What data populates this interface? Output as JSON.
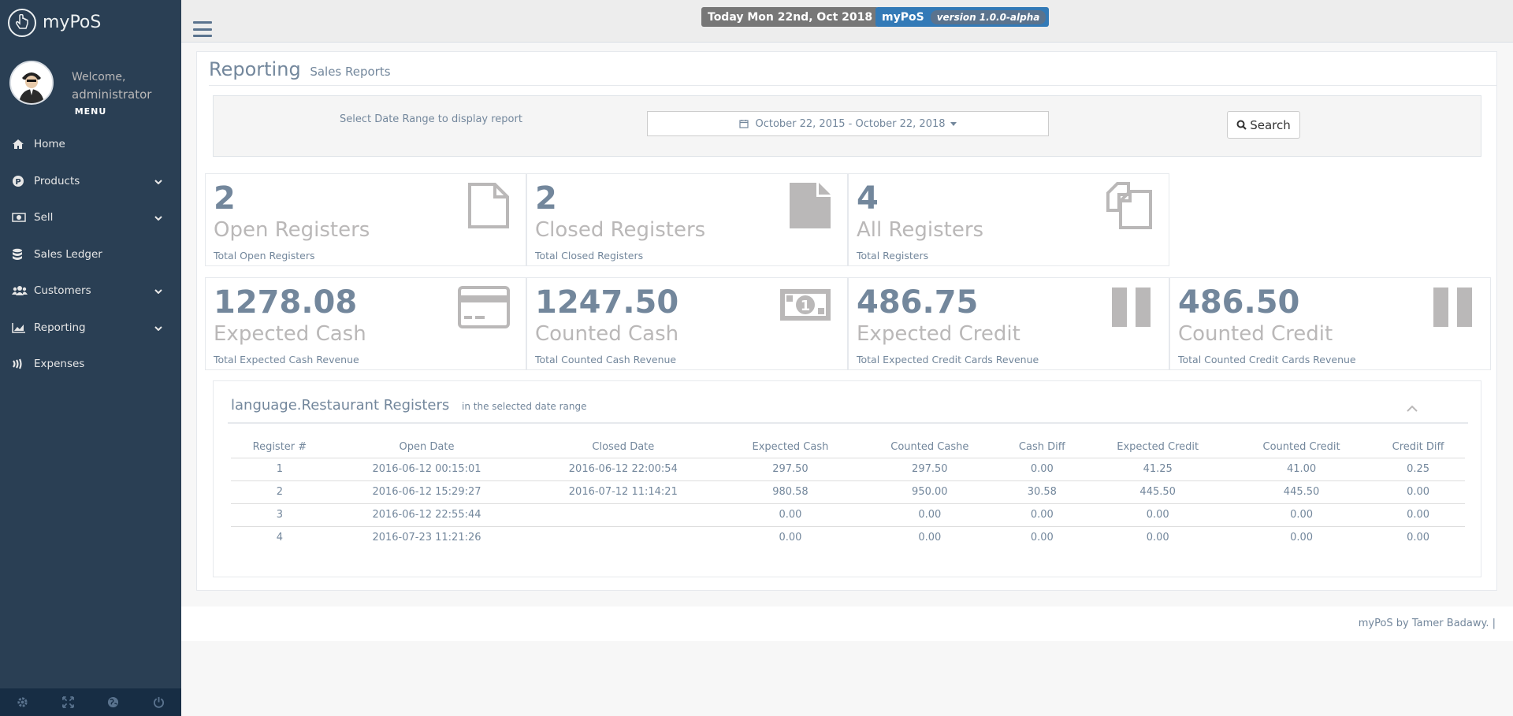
{
  "brand": {
    "name": "myPoS"
  },
  "profile": {
    "welcome": "Welcome,",
    "user": "administrator",
    "menu_label": "MENU"
  },
  "sidebar": {
    "items": [
      {
        "label": "Home",
        "icon": "home-icon",
        "has_children": false
      },
      {
        "label": "Products",
        "icon": "product-icon",
        "has_children": true
      },
      {
        "label": "Sell",
        "icon": "money-icon",
        "has_children": true
      },
      {
        "label": "Sales Ledger",
        "icon": "database-icon",
        "has_children": false
      },
      {
        "label": "Customers",
        "icon": "users-icon",
        "has_children": true
      },
      {
        "label": "Reporting",
        "icon": "chart-icon",
        "has_children": true
      },
      {
        "label": "Expenses",
        "icon": "expense-icon",
        "has_children": false
      }
    ],
    "footer_icons": [
      "settings-icon",
      "fullscreen-icon",
      "globe-icon",
      "power-icon"
    ]
  },
  "topbar": {
    "date_badge": "Today Mon 22nd, Oct 2018",
    "app_badge": "myPoS",
    "version_badge": "version 1.0.0-alpha"
  },
  "page": {
    "title": "Reporting",
    "subtitle": "Sales Reports"
  },
  "filter": {
    "label": "Select Date Range to display report",
    "date_range": "October 22, 2015 - October 22, 2018",
    "search_label": "Search"
  },
  "tiles": [
    {
      "count": "2",
      "name": "Open Registers",
      "sub": "Total Open Registers",
      "icon": "file-outline-icon"
    },
    {
      "count": "2",
      "name": "Closed Registers",
      "sub": "Total Closed Registers",
      "icon": "file-icon"
    },
    {
      "count": "4",
      "name": "All Registers",
      "sub": "Total Registers",
      "icon": "files-icon"
    },
    {
      "count": "1278.08",
      "name": "Expected Cash",
      "sub": "Total Expected Cash Revenue",
      "icon": "credit-card-icon"
    },
    {
      "count": "1247.50",
      "name": "Counted Cash",
      "sub": "Total Counted Cash Revenue",
      "icon": "banknote-icon"
    },
    {
      "count": "486.75",
      "name": "Expected Credit",
      "sub": "Total Expected Credit Cards Revenue",
      "icon": "pause-bars-icon"
    },
    {
      "count": "486.50",
      "name": "Counted Credit",
      "sub": "Total Counted Credit Cards Revenue",
      "icon": "pause-bars-icon"
    }
  ],
  "registers": {
    "title": "language.Restaurant Registers",
    "subtitle": "in the selected date range",
    "columns": [
      "Register #",
      "Open Date",
      "Closed Date",
      "Expected Cash",
      "Counted Cashe",
      "Cash Diff",
      "Expected Credit",
      "Counted Credit",
      "Credit Diff"
    ],
    "rows": [
      [
        "1",
        "2016-06-12 00:15:01",
        "2016-06-12 22:00:54",
        "297.50",
        "297.50",
        "0.00",
        "41.25",
        "41.00",
        "0.25"
      ],
      [
        "2",
        "2016-06-12 15:29:27",
        "2016-07-12 11:14:21",
        "980.58",
        "950.00",
        "30.58",
        "445.50",
        "445.50",
        "0.00"
      ],
      [
        "3",
        "2016-06-12 22:55:44",
        "",
        "0.00",
        "0.00",
        "0.00",
        "0.00",
        "0.00",
        "0.00"
      ],
      [
        "4",
        "2016-07-23 11:21:26",
        "",
        "0.00",
        "0.00",
        "0.00",
        "0.00",
        "0.00",
        "0.00"
      ]
    ]
  },
  "footer": {
    "text": "myPoS by Tamer Badawy. |"
  },
  "colors": {
    "sidebar": "#2a3f54",
    "sidebar_footer": "#172d44",
    "text": "#73879c",
    "muted": "#bab8b8",
    "badge_blue": "#337ab7",
    "badge_grey": "#777777"
  }
}
